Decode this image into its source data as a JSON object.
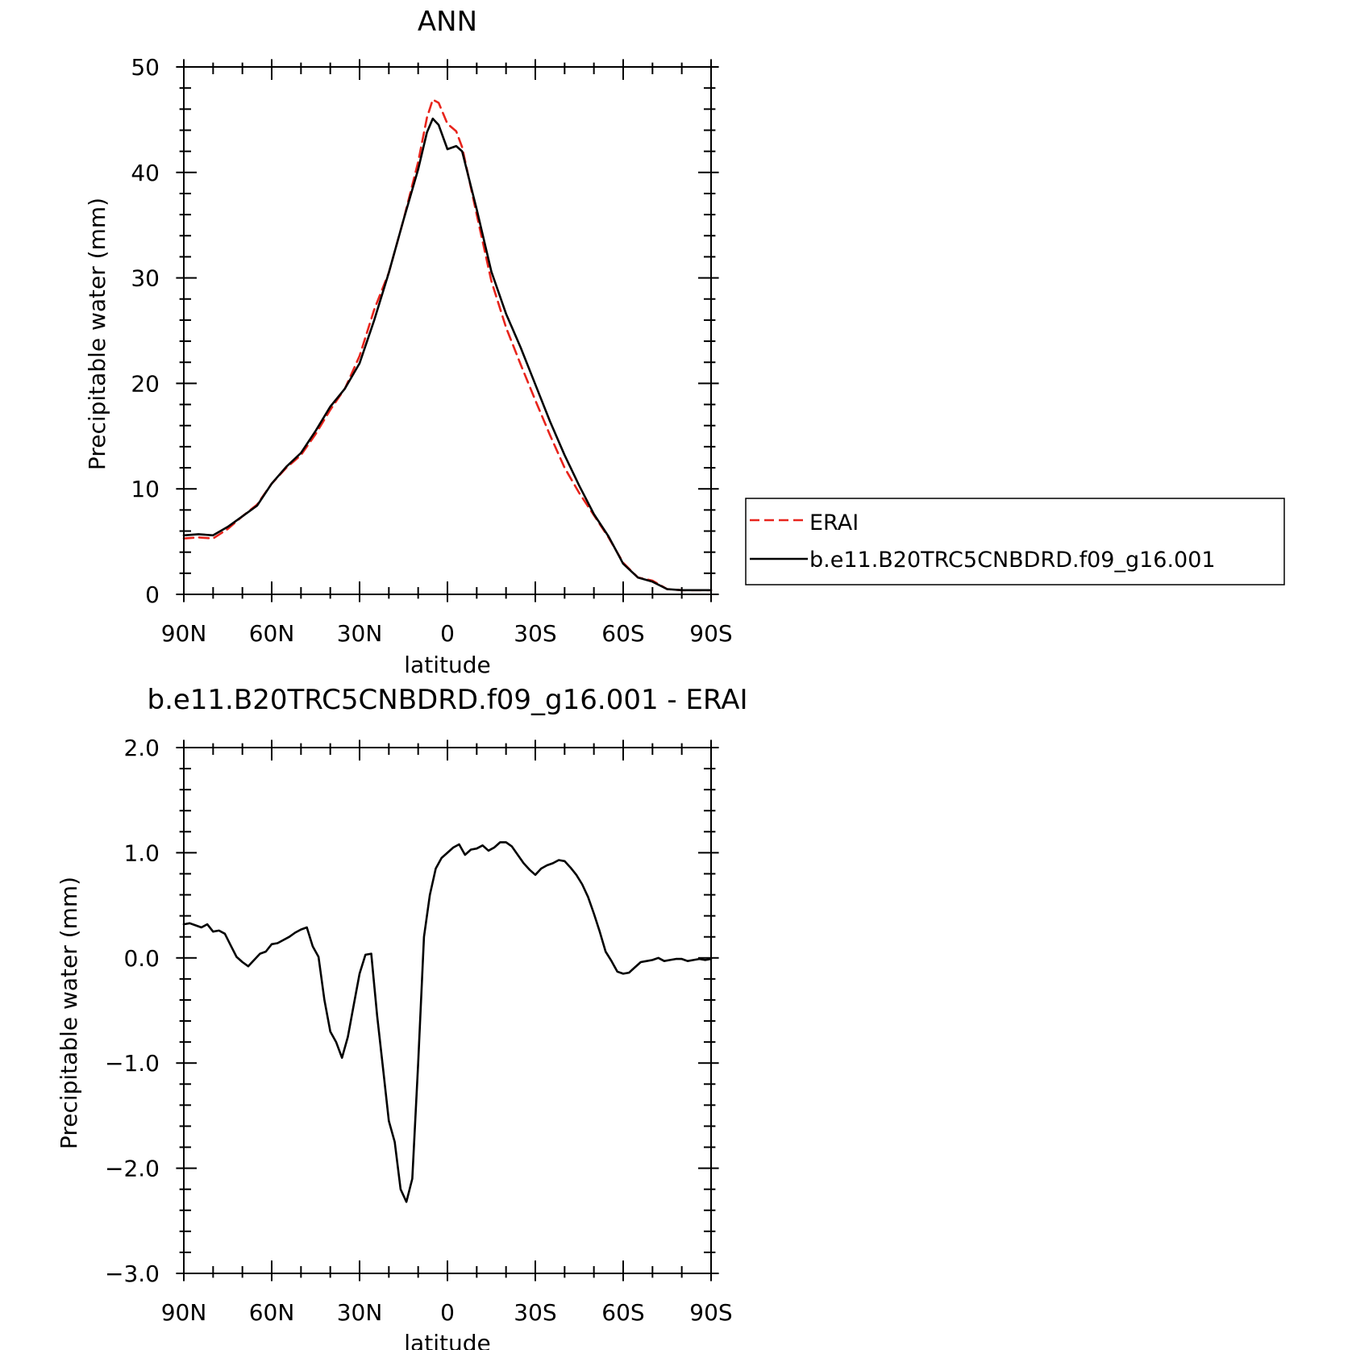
{
  "chart_data": [
    {
      "type": "line",
      "title": "ANN",
      "xlabel": "latitude",
      "ylabel": "Precipitable water (mm)",
      "x_ticks": [
        "90N",
        "60N",
        "30N",
        "0",
        "30S",
        "60S",
        "90S"
      ],
      "y_ticks": [
        "0",
        "10",
        "20",
        "30",
        "40",
        "50"
      ],
      "xlim": [
        90,
        -90
      ],
      "ylim": [
        0,
        50
      ],
      "grid": false,
      "legend_position": "right",
      "series": [
        {
          "name": "ERAI",
          "color": "#e8241c",
          "style": "dashed",
          "x": [
            90,
            85,
            80,
            75,
            70,
            65,
            60,
            55,
            50,
            45,
            40,
            35,
            30,
            25,
            20,
            15,
            10,
            7,
            5,
            3,
            0,
            -3,
            -5,
            -10,
            -15,
            -20,
            -25,
            -30,
            -35,
            -40,
            -45,
            -50,
            -55,
            -60,
            -65,
            -70,
            -75,
            -80,
            -85,
            -90
          ],
          "y": [
            5.3,
            5.4,
            5.3,
            6.2,
            7.4,
            8.5,
            10.5,
            12.0,
            13.2,
            15.2,
            17.5,
            19.5,
            22.6,
            27.0,
            30.5,
            35.5,
            41.0,
            45.2,
            46.9,
            46.6,
            44.6,
            43.9,
            42.4,
            36.0,
            29.7,
            25.3,
            21.8,
            18.4,
            15.1,
            12.0,
            9.6,
            7.5,
            5.4,
            3.0,
            1.6,
            1.3,
            0.5,
            0.4,
            0.4,
            0.4
          ]
        },
        {
          "name": "b.e11.B20TRC5CNBDRD.f09_g16.001",
          "color": "#000000",
          "style": "solid",
          "x": [
            90,
            85,
            80,
            75,
            70,
            65,
            60,
            55,
            50,
            45,
            40,
            35,
            30,
            25,
            20,
            15,
            10,
            7,
            5,
            3,
            0,
            -3,
            -5,
            -10,
            -15,
            -20,
            -25,
            -30,
            -35,
            -40,
            -45,
            -50,
            -55,
            -60,
            -65,
            -70,
            -75,
            -80,
            -85,
            -90
          ],
          "y": [
            5.6,
            5.7,
            5.6,
            6.4,
            7.4,
            8.4,
            10.5,
            12.1,
            13.4,
            15.5,
            17.8,
            19.5,
            21.9,
            26.0,
            30.5,
            35.5,
            40.3,
            43.8,
            45.1,
            44.5,
            42.2,
            42.5,
            42.0,
            36.5,
            30.6,
            26.6,
            23.4,
            19.9,
            16.4,
            13.2,
            10.3,
            7.6,
            5.5,
            2.9,
            1.6,
            1.2,
            0.5,
            0.4,
            0.4,
            0.4
          ]
        }
      ]
    },
    {
      "type": "line",
      "title": "b.e11.B20TRC5CNBDRD.f09_g16.001 - ERAI",
      "xlabel": "latitude",
      "ylabel": "Precipitable water (mm)",
      "x_ticks": [
        "90N",
        "60N",
        "30N",
        "0",
        "30S",
        "60S",
        "90S"
      ],
      "y_ticks": [
        "-3.0",
        "-2.0",
        "-1.0",
        "0.0",
        "1.0",
        "2.0"
      ],
      "xlim": [
        90,
        -90
      ],
      "ylim": [
        -3,
        2
      ],
      "grid": false,
      "series": [
        {
          "color": "#000000",
          "style": "solid",
          "x": [
            90,
            88,
            86,
            84,
            82,
            80,
            78,
            76,
            74,
            72,
            70,
            68,
            66,
            64,
            62,
            60,
            58,
            56,
            54,
            52,
            50,
            48,
            46,
            44,
            42,
            40,
            38,
            36,
            34,
            32,
            30,
            28,
            26,
            24,
            22,
            20,
            18,
            16,
            14,
            12,
            10,
            8,
            6,
            4,
            2,
            0,
            -2,
            -4,
            -6,
            -8,
            -10,
            -12,
            -14,
            -16,
            -18,
            -20,
            -22,
            -24,
            -26,
            -28,
            -30,
            -32,
            -34,
            -36,
            -38,
            -40,
            -42,
            -44,
            -46,
            -48,
            -50,
            -52,
            -54,
            -56,
            -58,
            -60,
            -62,
            -64,
            -66,
            -68,
            -70,
            -72,
            -74,
            -76,
            -78,
            -80,
            -82,
            -84,
            -86,
            -88,
            -90
          ],
          "y": [
            0.32,
            0.33,
            0.31,
            0.29,
            0.32,
            0.25,
            0.26,
            0.23,
            0.12,
            0.01,
            -0.04,
            -0.08,
            -0.02,
            0.04,
            0.06,
            0.13,
            0.14,
            0.17,
            0.2,
            0.24,
            0.27,
            0.29,
            0.11,
            0.01,
            -0.4,
            -0.7,
            -0.8,
            -0.95,
            -0.75,
            -0.45,
            -0.15,
            0.03,
            0.04,
            -0.55,
            -1.05,
            -1.55,
            -1.75,
            -2.2,
            -2.32,
            -2.1,
            -1.0,
            0.2,
            0.6,
            0.85,
            0.95,
            1.0,
            1.05,
            1.08,
            0.98,
            1.03,
            1.04,
            1.07,
            1.02,
            1.05,
            1.1,
            1.1,
            1.06,
            0.98,
            0.9,
            0.84,
            0.79,
            0.85,
            0.88,
            0.9,
            0.93,
            0.92,
            0.86,
            0.79,
            0.7,
            0.58,
            0.42,
            0.25,
            0.06,
            -0.03,
            -0.13,
            -0.15,
            -0.14,
            -0.09,
            -0.04,
            -0.03,
            -0.02,
            0.0,
            -0.03,
            -0.02,
            -0.01,
            -0.01,
            -0.03,
            -0.02,
            -0.01,
            -0.02,
            -0.01
          ]
        }
      ]
    }
  ],
  "legend": {
    "items": [
      {
        "label": "ERAI"
      },
      {
        "label": "b.e11.B20TRC5CNBDRD.f09_g16.001"
      }
    ]
  }
}
